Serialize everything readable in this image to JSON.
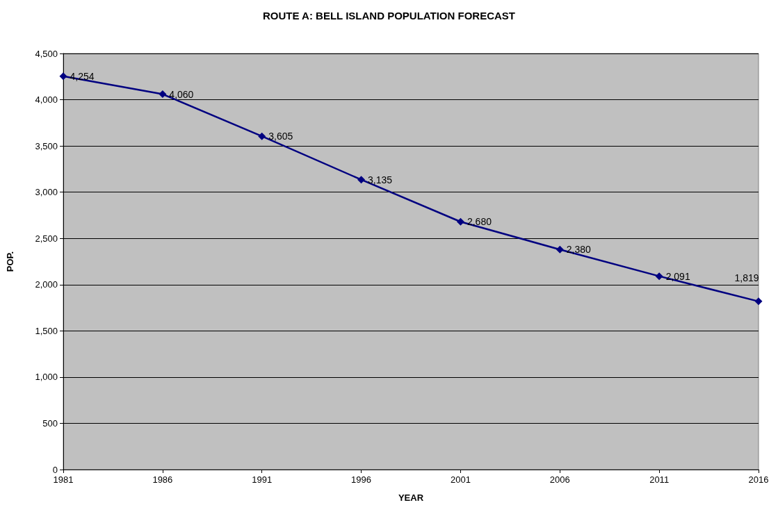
{
  "chart_data": {
    "type": "line",
    "title": "ROUTE A: BELL ISLAND POPULATION FORECAST",
    "xlabel": "YEAR",
    "ylabel": "POP.",
    "x": [
      1981,
      1986,
      1991,
      1996,
      2001,
      2006,
      2011,
      2016
    ],
    "series": [
      {
        "color": "#000080",
        "values": [
          4254,
          4060,
          3605,
          3135,
          2680,
          2380,
          2091,
          1819
        ],
        "value_labels": [
          "4,254",
          "4,060",
          "3,605",
          "3,135",
          "2,680",
          "2,380",
          "2,091",
          "1,819"
        ]
      }
    ],
    "xlim": [
      1981,
      2016
    ],
    "xticks": [
      1981,
      1986,
      1991,
      1996,
      2001,
      2006,
      2011,
      2016
    ],
    "ylim": [
      0,
      4500
    ],
    "yticks": [
      0,
      {
        "value": 500,
        "label": "500"
      },
      {
        "value": 1000,
        "label": "1,000"
      },
      {
        "value": 1500,
        "label": "1,500"
      },
      {
        "value": 2000,
        "label": "2,000"
      },
      {
        "value": 2500,
        "label": "2,500"
      },
      {
        "value": 3000,
        "label": "3,000"
      },
      {
        "value": 3500,
        "label": "3,500"
      },
      {
        "value": 4000,
        "label": "4,000"
      },
      {
        "value": 4500,
        "label": "4,500"
      }
    ],
    "grid": "y",
    "marker": "diamond",
    "line_style": "solid"
  }
}
